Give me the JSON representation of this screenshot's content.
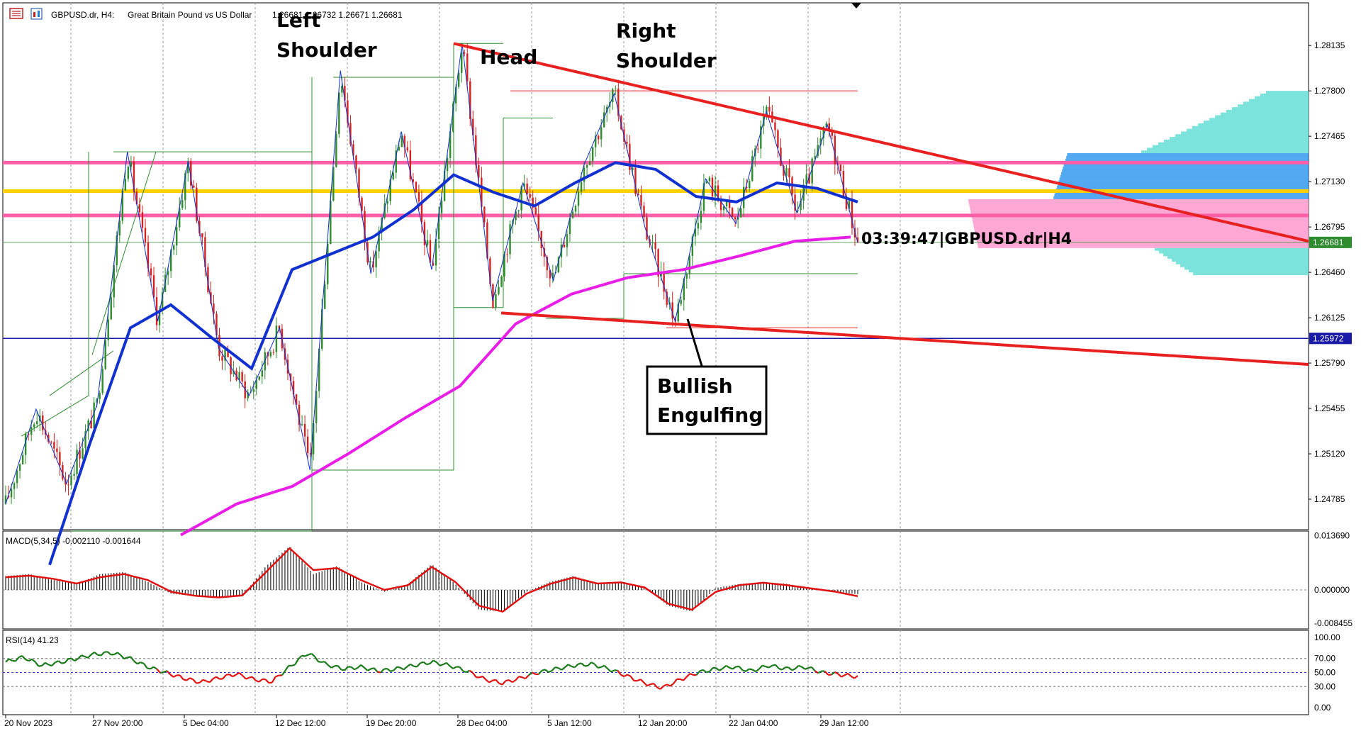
{
  "header": {
    "symbol": "GBPUSD.dr, H4:",
    "description": "Great Britain Pound vs US Dollar",
    "ohlc": "1.26681 1.26732 1.26671 1.26681"
  },
  "annotations": {
    "left_shoulder": [
      "Left",
      "Shoulder"
    ],
    "head": "Head",
    "right_shoulder": [
      "Right",
      "Shoulder"
    ],
    "candle_timer": "03:39:47|GBPUSD.dr|H4",
    "bullish_engulfing": [
      "Bullish",
      "Engulfing"
    ]
  },
  "colors": {
    "bull_candle": "#2e8b2e",
    "bear_candle": "#d42020",
    "ema_fast": "#1030d0",
    "ema_slow": "#e81ee8",
    "trendline": "#e82020",
    "resistance_band": "#ff5fa8",
    "pivot_band": "#ffd000",
    "support_line": "#1a1aa8",
    "volume_profile_up": "#6ee0d8",
    "volume_profile_mid": "#ff9fd0",
    "volume_profile_blue": "#3fa0f0",
    "macd_line": "#e01010",
    "rsi_bull": "#1a7a1a",
    "rsi_bear": "#e01010"
  },
  "chart_data": [
    {
      "type": "line",
      "title": "GBPUSD.dr, H4: Great Britain Pound vs US Dollar",
      "price_axis_labels": [
        "1.28135",
        "1.27800",
        "1.27465",
        "1.27130",
        "1.26795",
        "1.26460",
        "1.26125",
        "1.25790",
        "1.25455",
        "1.25120",
        "1.24785"
      ],
      "price_axis_values": [
        1.28135,
        1.278,
        1.27465,
        1.2713,
        1.26795,
        1.2646,
        1.26125,
        1.2579,
        1.25455,
        1.2512,
        1.24785
      ],
      "ylim": [
        1.2456,
        1.2845
      ],
      "current_price": "1.26681",
      "support_price": "1.25972",
      "x_labels": [
        "20 Nov 2023",
        "27 Nov 20:00",
        "5 Dec 04:00",
        "12 Dec 12:00",
        "19 Dec 20:00",
        "28 Dec 04:00",
        "5 Jan 12:00",
        "12 Jan 20:00",
        "22 Jan 04:00",
        "29 Jan 12:00"
      ],
      "series": [
        {
          "name": "Price",
          "values": [
            1.2475,
            1.2545,
            1.249,
            1.2548,
            1.2735,
            1.261,
            1.2728,
            1.259,
            1.2555,
            1.2605,
            1.25,
            1.2795,
            1.2645,
            1.275,
            1.2648,
            1.2815,
            1.2625,
            1.2712,
            1.264,
            1.2725,
            1.2778,
            1.268,
            1.261,
            1.2715,
            1.2682,
            1.2765,
            1.269,
            1.2755,
            1.2668
          ]
        },
        {
          "name": "EMA fast",
          "values": [
            1.243,
            1.252,
            1.2605,
            1.2622,
            1.2598,
            1.2575,
            1.2648,
            1.266,
            1.2672,
            1.2692,
            1.2718,
            1.2705,
            1.2695,
            1.2712,
            1.2727,
            1.2722,
            1.2702,
            1.2698,
            1.2712,
            1.2708,
            1.2698
          ]
        },
        {
          "name": "EMA slow",
          "values": [
            1.2452,
            1.2475,
            1.2488,
            1.2512,
            1.2538,
            1.2562,
            1.2608,
            1.263,
            1.2642,
            1.2648,
            1.2658,
            1.2669,
            1.2672
          ]
        }
      ]
    },
    {
      "type": "bar",
      "title": "MACD(5,34,5) -0.002110 -0.001644",
      "axis_labels": [
        "0.013690",
        "0.000000",
        "-0.008455"
      ],
      "ylim": [
        -0.0095,
        0.0145
      ],
      "histogram": [
        0.0035,
        0.004,
        0.0025,
        0.0015,
        0.004,
        0.0045,
        0.002,
        -0.001,
        -0.0015,
        -0.002,
        -0.0015,
        0.006,
        0.011,
        0.004,
        0.006,
        0.002,
        -0.0005,
        0.0015,
        0.0065,
        0.0015,
        -0.005,
        -0.0055,
        -0.0005,
        0.002,
        0.0035,
        0.0015,
        0.002,
        0.0005,
        -0.004,
        -0.0055,
        0.0005,
        0.0015,
        0.002,
        0.0015,
        0.0005,
        -0.0005,
        -0.0011
      ],
      "signal": [
        0.0032,
        0.0036,
        0.0028,
        0.0016,
        0.0032,
        0.004,
        0.0025,
        -0.0005,
        -0.0015,
        -0.0019,
        -0.0014,
        0.0045,
        0.0105,
        0.005,
        0.0055,
        0.0025,
        0.0,
        0.0012,
        0.0058,
        0.002,
        -0.004,
        -0.0055,
        -0.001,
        0.0015,
        0.0031,
        0.0016,
        0.0019,
        0.0006,
        -0.0035,
        -0.005,
        -0.0005,
        0.0012,
        0.0018,
        0.0012,
        0.0004,
        -0.0004,
        -0.0016
      ]
    },
    {
      "type": "line",
      "title": "RSI(14) 41.23",
      "axis_labels": [
        "100.00",
        "70.00",
        "50.00",
        "30.00",
        "0.00"
      ],
      "ylim": [
        0,
        100
      ],
      "levels": [
        70,
        50,
        30
      ],
      "values": [
        65,
        72,
        60,
        64,
        70,
        76,
        78,
        70,
        58,
        50,
        42,
        36,
        42,
        48,
        40,
        37,
        58,
        78,
        62,
        55,
        58,
        52,
        55,
        60,
        65,
        60,
        52,
        40,
        35,
        42,
        50,
        55,
        60,
        62,
        55,
        45,
        35,
        28,
        40,
        50,
        55,
        58,
        52,
        60,
        55,
        58,
        50,
        47,
        44
      ]
    }
  ]
}
